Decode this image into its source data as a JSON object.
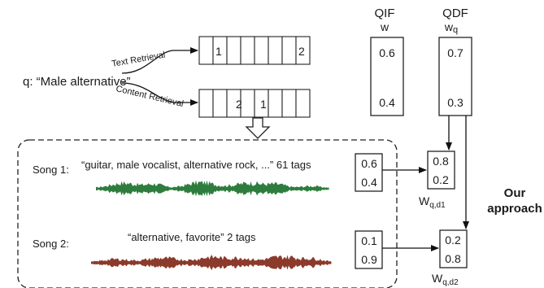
{
  "query": {
    "text": "q: “Male alternative”"
  },
  "retrieval": {
    "text_label": "Text Retrieval",
    "content_label": "Content Retrieval",
    "text_ranks": [
      "1",
      "2"
    ],
    "content_ranks": [
      "2",
      "1"
    ]
  },
  "qif": {
    "title": "QIF",
    "symbol": "w",
    "values": [
      "0.6",
      "0.4"
    ]
  },
  "qdf": {
    "title": "QDF",
    "symbol": "w",
    "symbol_sub": "q",
    "values": [
      "0.7",
      "0.3"
    ]
  },
  "songs": [
    {
      "label": "Song 1:",
      "tags": "“guitar, male vocalist, alternative rock, ...” 61 tags",
      "weights": [
        "0.6",
        "0.4"
      ],
      "result": {
        "values": [
          "0.8",
          "0.2"
        ],
        "symbol": "W",
        "sub": "q,d1"
      },
      "wave_color": "#2e7d3e"
    },
    {
      "label": "Song 2:",
      "tags": "“alternative, favorite” 2 tags",
      "weights": [
        "0.1",
        "0.9"
      ],
      "result": {
        "values": [
          "0.2",
          "0.8"
        ],
        "symbol": "W",
        "sub": "q,d2"
      },
      "wave_color": "#8b3a2b"
    }
  ],
  "approach": {
    "line1": "Our",
    "line2": "approach"
  }
}
